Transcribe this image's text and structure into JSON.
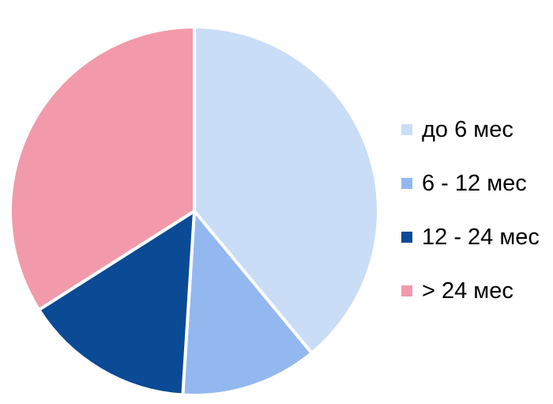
{
  "chart_data": {
    "type": "pie",
    "title": "",
    "categories": [
      "до 6 мес",
      "6 - 12 мес",
      "12 - 24 мес",
      "> 24 мес"
    ],
    "values": [
      39,
      12,
      15,
      34
    ],
    "colors": [
      "#c9ddf7",
      "#93b8ef",
      "#0b4a94",
      "#f29aab"
    ],
    "start_angle_deg": 0,
    "direction": "clockwise",
    "legend_position": "right"
  }
}
